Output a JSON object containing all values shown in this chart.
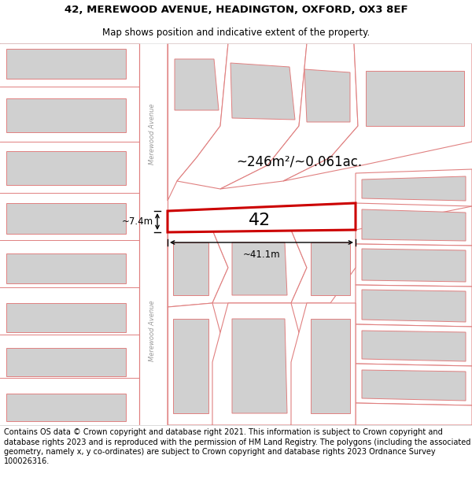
{
  "title_line1": "42, MEREWOOD AVENUE, HEADINGTON, OXFORD, OX3 8EF",
  "title_line2": "Map shows position and indicative extent of the property.",
  "footer_text": "Contains OS data © Crown copyright and database right 2021. This information is subject to Crown copyright and database rights 2023 and is reproduced with the permission of HM Land Registry. The polygons (including the associated geometry, namely x, y co-ordinates) are subject to Crown copyright and database rights 2023 Ordnance Survey 100026316.",
  "area_text": "~246m²/~0.061ac.",
  "property_number": "42",
  "dim_width": "~41.1m",
  "dim_height": "~7.4m",
  "road_line_color": "#e08080",
  "prop_edge_color": "#cc0000",
  "building_fill": "#d0d0d0",
  "building_edge": "#e08080",
  "street_label": "Merewood Avenue",
  "title_fontsize": 9.5,
  "subtitle_fontsize": 8.5,
  "footer_fontsize": 7.0
}
